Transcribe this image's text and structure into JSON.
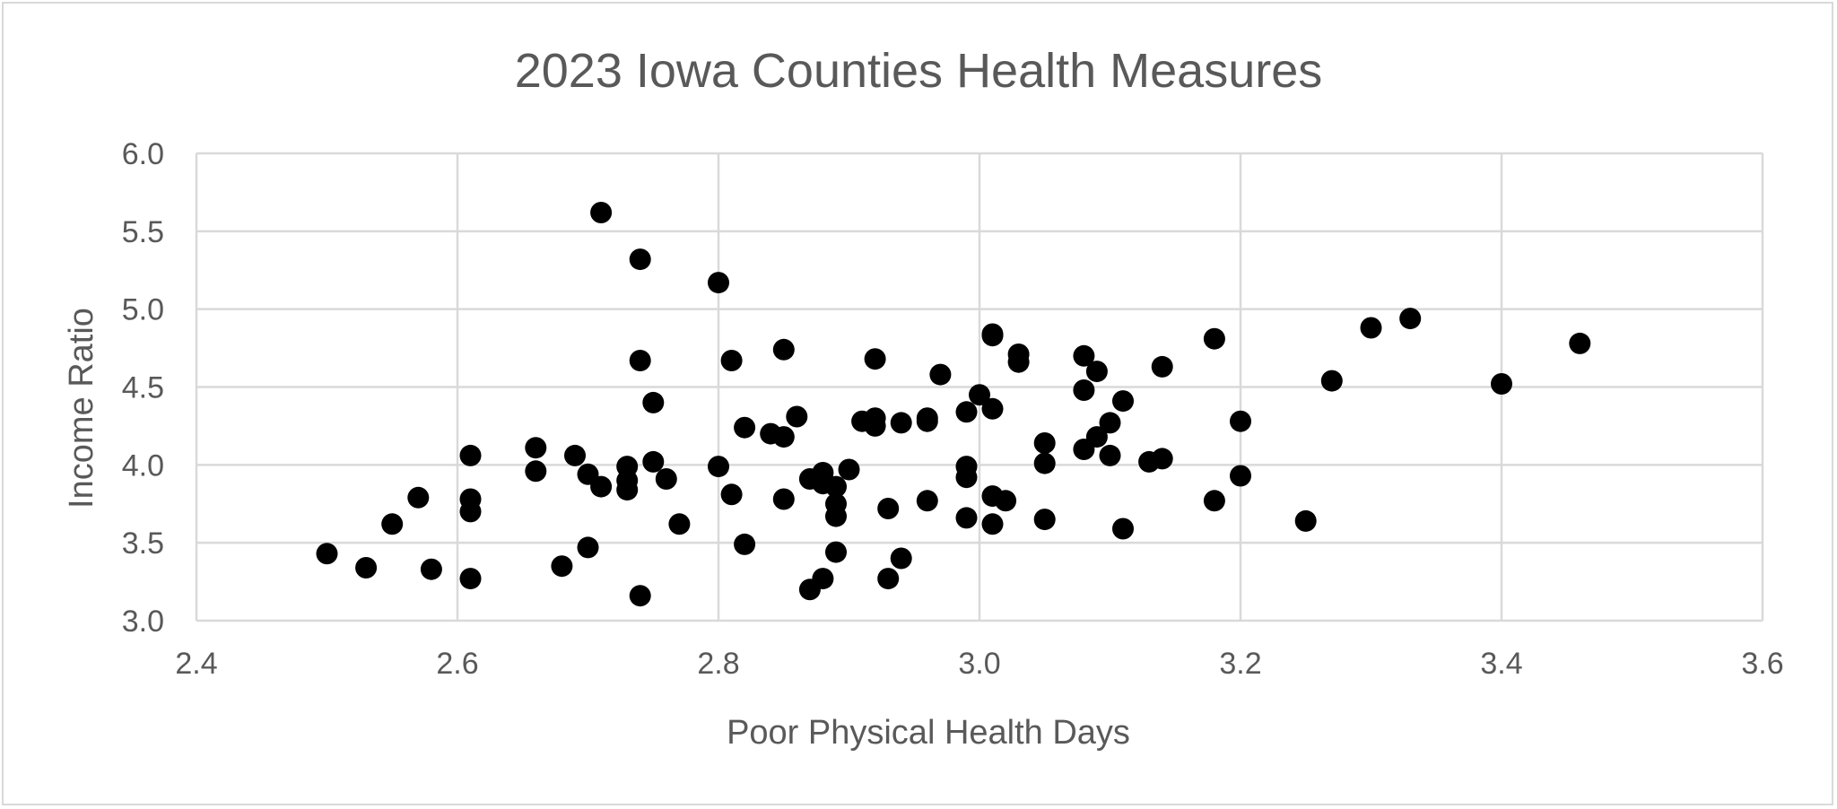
{
  "chart_data": {
    "type": "scatter",
    "title": "2023 Iowa Counties Health Measures",
    "xlabel": "Poor Physical Health Days",
    "ylabel": "Income Ratio",
    "xlim": [
      2.4,
      3.6
    ],
    "ylim": [
      3.0,
      6.0
    ],
    "x_ticks": [
      "2.4",
      "2.6",
      "2.8",
      "3.0",
      "3.2",
      "3.4",
      "3.6"
    ],
    "y_ticks": [
      "3.0",
      "3.5",
      "4.0",
      "4.5",
      "5.0",
      "5.5",
      "6.0"
    ],
    "grid": true,
    "legend": "none",
    "marker_color": "#000000",
    "series": [
      {
        "points": [
          [
            2.5,
            3.43
          ],
          [
            2.53,
            3.34
          ],
          [
            2.55,
            3.62
          ],
          [
            2.57,
            3.79
          ],
          [
            2.58,
            3.33
          ],
          [
            2.61,
            4.06
          ],
          [
            2.61,
            3.78
          ],
          [
            2.61,
            3.27
          ],
          [
            2.61,
            3.7
          ],
          [
            2.66,
            4.11
          ],
          [
            2.66,
            3.96
          ],
          [
            2.68,
            3.35
          ],
          [
            2.69,
            4.06
          ],
          [
            2.7,
            3.94
          ],
          [
            2.71,
            3.86
          ],
          [
            2.7,
            3.47
          ],
          [
            2.71,
            5.62
          ],
          [
            2.73,
            3.9
          ],
          [
            2.73,
            3.84
          ],
          [
            2.73,
            3.99
          ],
          [
            2.74,
            5.32
          ],
          [
            2.74,
            4.67
          ],
          [
            2.75,
            4.02
          ],
          [
            2.74,
            3.16
          ],
          [
            2.75,
            4.4
          ],
          [
            2.76,
            3.91
          ],
          [
            2.77,
            3.62
          ],
          [
            2.8,
            5.17
          ],
          [
            2.8,
            3.99
          ],
          [
            2.81,
            4.67
          ],
          [
            2.81,
            3.81
          ],
          [
            2.82,
            4.24
          ],
          [
            2.82,
            3.49
          ],
          [
            2.84,
            4.2
          ],
          [
            2.85,
            4.74
          ],
          [
            2.85,
            3.78
          ],
          [
            2.85,
            4.18
          ],
          [
            2.86,
            4.31
          ],
          [
            2.87,
            3.91
          ],
          [
            2.87,
            3.2
          ],
          [
            2.88,
            3.95
          ],
          [
            2.88,
            3.27
          ],
          [
            2.88,
            3.88
          ],
          [
            2.89,
            3.44
          ],
          [
            2.89,
            3.75
          ],
          [
            2.89,
            3.86
          ],
          [
            2.89,
            3.67
          ],
          [
            2.9,
            3.97
          ],
          [
            2.91,
            4.28
          ],
          [
            2.92,
            4.25
          ],
          [
            2.92,
            4.68
          ],
          [
            2.92,
            4.3
          ],
          [
            2.93,
            3.27
          ],
          [
            2.93,
            3.72
          ],
          [
            2.94,
            3.4
          ],
          [
            2.94,
            4.27
          ],
          [
            2.96,
            4.3
          ],
          [
            2.96,
            4.28
          ],
          [
            2.96,
            3.77
          ],
          [
            2.97,
            4.58
          ],
          [
            2.99,
            4.34
          ],
          [
            2.99,
            3.92
          ],
          [
            2.99,
            3.66
          ],
          [
            2.99,
            3.99
          ],
          [
            3.0,
            4.45
          ],
          [
            3.01,
            4.36
          ],
          [
            3.01,
            4.83
          ],
          [
            3.01,
            4.84
          ],
          [
            3.01,
            3.8
          ],
          [
            3.01,
            3.62
          ],
          [
            3.02,
            3.77
          ],
          [
            3.03,
            4.71
          ],
          [
            3.03,
            4.66
          ],
          [
            3.05,
            4.01
          ],
          [
            3.05,
            3.65
          ],
          [
            3.05,
            4.14
          ],
          [
            3.08,
            4.7
          ],
          [
            3.08,
            4.48
          ],
          [
            3.08,
            4.1
          ],
          [
            3.09,
            4.18
          ],
          [
            3.09,
            4.6
          ],
          [
            3.1,
            4.27
          ],
          [
            3.1,
            4.06
          ],
          [
            3.11,
            4.41
          ],
          [
            3.11,
            3.59
          ],
          [
            3.13,
            4.02
          ],
          [
            3.14,
            4.63
          ],
          [
            3.14,
            4.04
          ],
          [
            3.18,
            4.81
          ],
          [
            3.18,
            3.77
          ],
          [
            3.2,
            3.93
          ],
          [
            3.2,
            4.28
          ],
          [
            3.25,
            3.64
          ],
          [
            3.27,
            4.54
          ],
          [
            3.3,
            4.88
          ],
          [
            3.33,
            4.94
          ],
          [
            3.4,
            4.52
          ],
          [
            3.46,
            4.78
          ]
        ]
      }
    ]
  }
}
